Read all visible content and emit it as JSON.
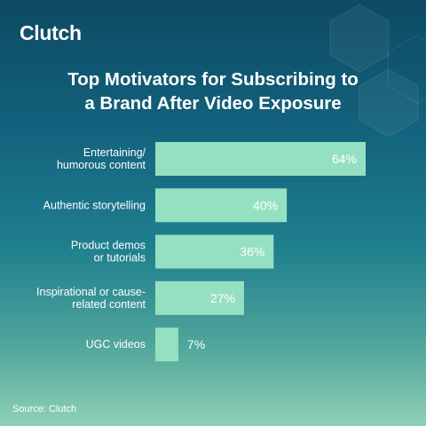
{
  "brand": {
    "name": "Clutch",
    "accent": "#e8384f"
  },
  "source": "Source: Clutch",
  "colors": {
    "bar": "#96e0c2",
    "background_top": "#0d4a63",
    "background_bottom": "#8fd1b6"
  },
  "chart_data": {
    "type": "bar",
    "orientation": "horizontal",
    "title": "Top Motivators for Subscribing to a Brand After Video Exposure",
    "title_lines": [
      "Top Motivators for Subscribing to",
      "a Brand After Video Exposure"
    ],
    "categories": [
      [
        "Entertaining/",
        "humorous content"
      ],
      [
        "Authentic storytelling"
      ],
      [
        "Product demos",
        "or tutorials"
      ],
      [
        "Inspirational or cause-",
        "related content"
      ],
      [
        "UGC videos"
      ]
    ],
    "values": [
      64,
      40,
      36,
      27,
      7
    ],
    "value_labels": [
      "64%",
      "40%",
      "36%",
      "27%",
      "7%"
    ],
    "unit": "%",
    "xlim": [
      0,
      65
    ],
    "grid": false,
    "legend": "none"
  }
}
